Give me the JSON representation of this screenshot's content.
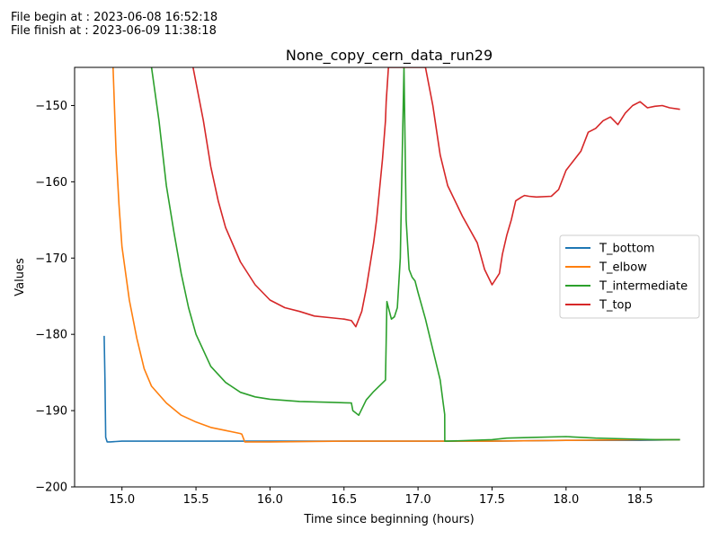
{
  "header": {
    "line1": "File begin at : 2023-06-08 16:52:18",
    "line2": "File finish at : 2023-06-09 11:38:18"
  },
  "chart_data": {
    "type": "line",
    "title": "None_copy_cern_data_run29",
    "xlabel": "Time since beginning (hours)",
    "ylabel": "Values",
    "xlim": [
      14.68,
      18.93
    ],
    "ylim": [
      -200,
      -145
    ],
    "xticks": [
      15.0,
      15.5,
      16.0,
      16.5,
      17.0,
      17.5,
      18.0,
      18.5
    ],
    "xtick_labels": [
      "15.0",
      "15.5",
      "16.0",
      "16.5",
      "17.0",
      "17.5",
      "18.0",
      "18.5"
    ],
    "yticks": [
      -200,
      -190,
      -180,
      -170,
      -160,
      -150
    ],
    "ytick_labels": [
      "−200",
      "−190",
      "−180",
      "−170",
      "−160",
      "−150"
    ],
    "grid": false,
    "legend": "center-right",
    "series": [
      {
        "name": "T_bottom",
        "color": "#1f77b4",
        "x": [
          14.88,
          14.885,
          14.89,
          14.9,
          14.92,
          15.0,
          15.2,
          15.5,
          15.8,
          16.0,
          16.5,
          17.0,
          17.18,
          17.5,
          18.0,
          18.5,
          18.77
        ],
        "y": [
          -180.2,
          -186,
          -193.5,
          -194.1,
          -194.1,
          -194.0,
          -194.0,
          -194.0,
          -194.0,
          -194.0,
          -194.0,
          -194.0,
          -194.0,
          -194.0,
          -193.9,
          -193.9,
          -193.8
        ]
      },
      {
        "name": "T_elbow",
        "color": "#ff7f0e",
        "x": [
          14.94,
          14.96,
          14.98,
          15.0,
          15.05,
          15.1,
          15.15,
          15.2,
          15.3,
          15.4,
          15.5,
          15.6,
          15.7,
          15.8,
          15.81,
          15.83,
          16.0,
          16.5,
          17.0,
          17.5,
          18.0,
          18.5,
          18.77
        ],
        "y": [
          -145,
          -156,
          -163,
          -168.5,
          -175.5,
          -180.5,
          -184.5,
          -186.8,
          -189.0,
          -190.6,
          -191.5,
          -192.2,
          -192.6,
          -193.0,
          -193.1,
          -194.1,
          -194.1,
          -194.0,
          -194.0,
          -194.0,
          -193.9,
          -193.8,
          -193.8
        ]
      },
      {
        "name": "T_intermediate",
        "color": "#2ca02c",
        "x": [
          15.2,
          15.25,
          15.3,
          15.35,
          15.4,
          15.45,
          15.5,
          15.6,
          15.7,
          15.8,
          15.9,
          16.0,
          16.2,
          16.4,
          16.55,
          16.56,
          16.6,
          16.65,
          16.7,
          16.78,
          16.79,
          16.8,
          16.82,
          16.84,
          16.86,
          16.88,
          16.895,
          16.905,
          16.92,
          16.94,
          16.96,
          16.98,
          17.0,
          17.05,
          17.1,
          17.15,
          17.17,
          17.18,
          17.181,
          17.2,
          17.5,
          17.6,
          17.8,
          18.0,
          18.2,
          18.4,
          18.6,
          18.77
        ],
        "y": [
          -145,
          -152,
          -160.5,
          -166.5,
          -172,
          -176.5,
          -180,
          -184.2,
          -186.3,
          -187.6,
          -188.2,
          -188.5,
          -188.8,
          -188.9,
          -189.0,
          -190.0,
          -190.6,
          -188.6,
          -187.5,
          -186.0,
          -175.7,
          -176.5,
          -178.0,
          -177.7,
          -176.5,
          -170,
          -155,
          -145,
          -165,
          -171.5,
          -172.5,
          -173,
          -174.5,
          -178,
          -182,
          -186,
          -189,
          -190.5,
          -194.0,
          -194.0,
          -193.8,
          -193.6,
          -193.5,
          -193.4,
          -193.6,
          -193.7,
          -193.8,
          -193.8
        ]
      },
      {
        "name": "T_top",
        "color": "#d62728",
        "x": [
          15.48,
          15.55,
          15.6,
          15.65,
          15.7,
          15.8,
          15.9,
          16.0,
          16.1,
          16.2,
          16.3,
          16.4,
          16.5,
          16.55,
          16.58,
          16.6,
          16.62,
          16.65,
          16.7,
          16.72,
          16.74,
          16.76,
          16.78,
          16.785,
          16.8,
          17.05,
          17.1,
          17.15,
          17.2,
          17.3,
          17.4,
          17.45,
          17.5,
          17.55,
          17.57,
          17.6,
          17.63,
          17.66,
          17.7,
          17.72,
          17.75,
          17.8,
          17.9,
          17.95,
          18.0,
          18.1,
          18.15,
          18.2,
          18.25,
          18.3,
          18.35,
          18.4,
          18.45,
          18.5,
          18.55,
          18.6,
          18.65,
          18.7,
          18.77
        ],
        "y": [
          -145,
          -152,
          -158,
          -162.5,
          -166,
          -170.5,
          -173.5,
          -175.5,
          -176.5,
          -177.0,
          -177.6,
          -177.8,
          -178.0,
          -178.2,
          -179.0,
          -178.0,
          -177.0,
          -174.0,
          -168.0,
          -165.0,
          -161.0,
          -157.0,
          -152.0,
          -149.5,
          -145,
          -145,
          -150,
          -156.5,
          -160.5,
          -164.5,
          -168,
          -171.5,
          -173.5,
          -172.0,
          -169.5,
          -167.0,
          -165.0,
          -162.5,
          -162.0,
          -161.8,
          -161.9,
          -162.0,
          -161.9,
          -161.0,
          -158.5,
          -156.0,
          -153.5,
          -153.0,
          -152.0,
          -151.5,
          -152.5,
          -151.0,
          -150.0,
          -149.5,
          -150.3,
          -150.1,
          -150.0,
          -150.3,
          -150.5
        ]
      }
    ]
  }
}
